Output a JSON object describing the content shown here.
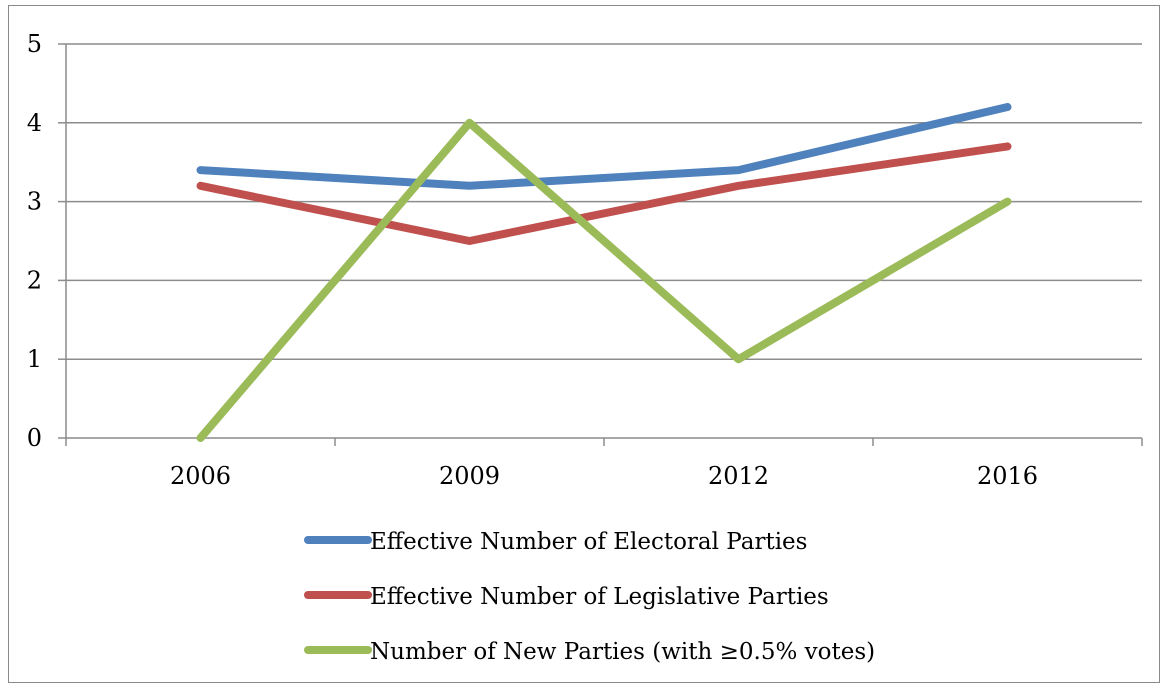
{
  "chart_data": {
    "type": "line",
    "title": "",
    "xlabel": "",
    "ylabel": "",
    "categories": [
      "2006",
      "2009",
      "2012",
      "2016"
    ],
    "ylim": [
      0,
      5
    ],
    "yticks": [
      "0",
      "1",
      "2",
      "3",
      "4",
      "5"
    ],
    "grid": "horizontal",
    "legend_position": "bottom",
    "series": [
      {
        "name": "Effective Number of Electoral Parties",
        "color": "#4f81bd",
        "values": [
          3.4,
          3.2,
          3.4,
          4.2
        ]
      },
      {
        "name": "Effective Number of Legislative Parties",
        "color": "#c0504d",
        "values": [
          3.2,
          2.5,
          3.2,
          3.7
        ]
      },
      {
        "name": "Number of New Parties (with ≥0.5% votes)",
        "color": "#9bbb59",
        "values": [
          0,
          4,
          1,
          3
        ]
      }
    ]
  }
}
